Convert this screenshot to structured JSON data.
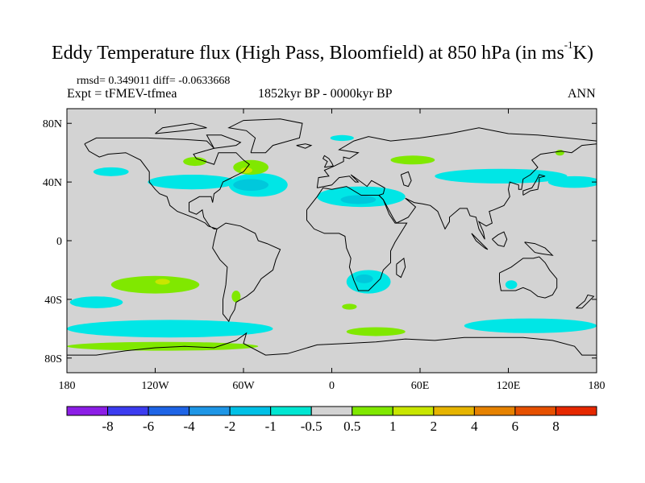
{
  "title": {
    "main": "Eddy Temperature flux (High Pass, Bloomfield) at 850 hPa (in ms",
    "superscript": "-1",
    "unit_end": "K)"
  },
  "stats": "rmsd= 0.349011 diff= -0.0633668",
  "experiment": "Expt = tFMEV-tfmea",
  "period": "1852kyr BP - 0000kyr BP",
  "season": "ANN",
  "map": {
    "projection": "cylindrical-equidistant",
    "lon_range": [
      -180,
      180
    ],
    "lat_range": [
      -90,
      90
    ],
    "background_color": "#d3d3d3",
    "coastline_color": "#000000",
    "x_tick_labels": [
      "180",
      "120W",
      "60W",
      "0",
      "60E",
      "120E",
      "180"
    ],
    "y_tick_labels": [
      "80N",
      "40N",
      "0",
      "40S",
      "80S"
    ],
    "field_regions": [
      {
        "name": "north-pacific-cyan",
        "lon": -150,
        "lat": 47,
        "rx": 12,
        "ry": 3,
        "color": "#00e6e6"
      },
      {
        "name": "north-america-cyan",
        "lon": -95,
        "lat": 40,
        "rx": 30,
        "ry": 5,
        "color": "#00e6e6"
      },
      {
        "name": "north-atlantic-cyan",
        "lon": -50,
        "lat": 38,
        "rx": 20,
        "ry": 8,
        "color": "#00e6e6"
      },
      {
        "name": "atlantic-blue-core",
        "lon": -55,
        "lat": 38,
        "rx": 12,
        "ry": 4,
        "color": "#00c8dc"
      },
      {
        "name": "greenland-cyan",
        "lon": 7,
        "lat": 70,
        "rx": 8,
        "ry": 2,
        "color": "#00e6e6"
      },
      {
        "name": "mediterranean-cyan",
        "lon": 20,
        "lat": 30,
        "rx": 30,
        "ry": 7,
        "color": "#00e6e6"
      },
      {
        "name": "mediterranean-blue-core",
        "lon": 18,
        "lat": 28,
        "rx": 12,
        "ry": 3,
        "color": "#00c8dc"
      },
      {
        "name": "asia-cyan",
        "lon": 115,
        "lat": 44,
        "rx": 45,
        "ry": 5,
        "color": "#00e6e6"
      },
      {
        "name": "north-pacific-east-cyan",
        "lon": 165,
        "lat": 40,
        "rx": 18,
        "ry": 4,
        "color": "#00e6e6"
      },
      {
        "name": "hudson-green",
        "lon": -93,
        "lat": 54,
        "rx": 8,
        "ry": 3,
        "color": "#80e800"
      },
      {
        "name": "newfoundland-green",
        "lon": -55,
        "lat": 50,
        "rx": 12,
        "ry": 5,
        "color": "#80e800"
      },
      {
        "name": "newfoundland-yellow",
        "lon": -58,
        "lat": 48,
        "rx": 4,
        "ry": 2,
        "color": "#c8e600"
      },
      {
        "name": "siberia-green",
        "lon": 55,
        "lat": 55,
        "rx": 15,
        "ry": 3,
        "color": "#80e800"
      },
      {
        "name": "kamchatka-green",
        "lon": 155,
        "lat": 60,
        "rx": 3,
        "ry": 2,
        "color": "#80e800"
      },
      {
        "name": "south-pacific-green",
        "lon": -120,
        "lat": -30,
        "rx": 30,
        "ry": 6,
        "color": "#80e800"
      },
      {
        "name": "south-pacific-yellow",
        "lon": -115,
        "lat": -28,
        "rx": 5,
        "ry": 2,
        "color": "#c8e600"
      },
      {
        "name": "south-pacific-cyan",
        "lon": -160,
        "lat": -42,
        "rx": 18,
        "ry": 4,
        "color": "#00e6e6"
      },
      {
        "name": "argentina-green",
        "lon": -65,
        "lat": -38,
        "rx": 3,
        "ry": 4,
        "color": "#80e800"
      },
      {
        "name": "southern-africa-cyan",
        "lon": 25,
        "lat": -28,
        "rx": 15,
        "ry": 8,
        "color": "#00e6e6"
      },
      {
        "name": "southern-africa-blue",
        "lon": 22,
        "lat": -26,
        "rx": 6,
        "ry": 3,
        "color": "#00c8dc"
      },
      {
        "name": "south-indian-green",
        "lon": 12,
        "lat": -45,
        "rx": 5,
        "ry": 2,
        "color": "#80e800"
      },
      {
        "name": "australia-cyan",
        "lon": 122,
        "lat": -30,
        "rx": 4,
        "ry": 3,
        "color": "#00e6e6"
      },
      {
        "name": "southern-ocean-cyan-west",
        "lon": -110,
        "lat": -60,
        "rx": 70,
        "ry": 6,
        "color": "#00e6e6"
      },
      {
        "name": "southern-ocean-cyan-east",
        "lon": 135,
        "lat": -58,
        "rx": 45,
        "ry": 5,
        "color": "#00e6e6"
      },
      {
        "name": "antarctic-green-band",
        "lon": -115,
        "lat": -72,
        "rx": 65,
        "ry": 3,
        "color": "#80e800"
      },
      {
        "name": "antarctic-green-east",
        "lon": 30,
        "lat": -62,
        "rx": 20,
        "ry": 3,
        "color": "#80e800"
      }
    ]
  },
  "colorbar": {
    "labels": [
      "-8",
      "-6",
      "-4",
      "-2",
      "-1",
      "-0.5",
      "0.5",
      "1",
      "2",
      "4",
      "6",
      "8"
    ],
    "colors": [
      "#8c1ee6",
      "#3c3cf0",
      "#1e64e6",
      "#1e96e6",
      "#00c0e6",
      "#00e6d2",
      "#d3d3d3",
      "#80e800",
      "#c8e600",
      "#e6b400",
      "#e68200",
      "#e65000",
      "#e62800"
    ]
  }
}
